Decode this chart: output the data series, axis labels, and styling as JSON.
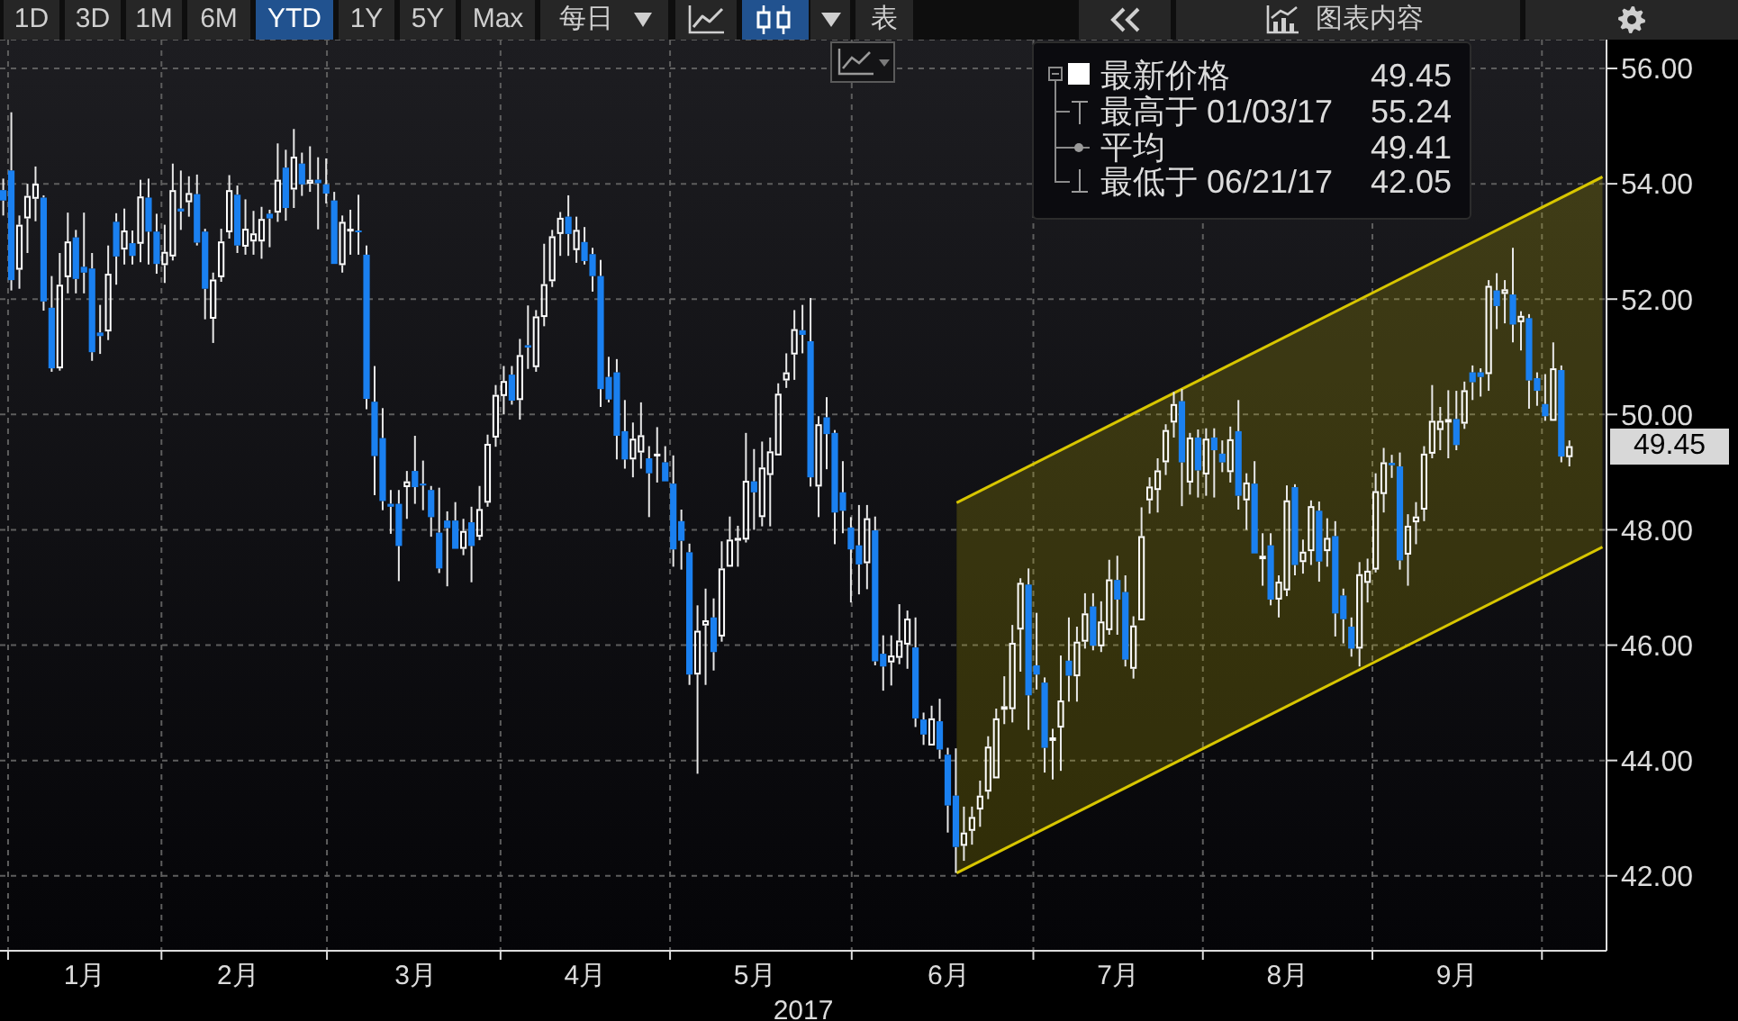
{
  "chart_data": {
    "type": "candlestick",
    "xlabel": "2017",
    "categories": [
      null,
      null,
      null,
      null,
      null,
      null,
      null,
      null,
      null,
      null,
      "1月",
      null,
      null,
      null,
      null,
      null,
      null,
      null,
      null,
      null,
      null,
      null,
      null,
      null,
      null,
      null,
      null,
      null,
      null,
      "2月",
      null,
      null,
      null,
      null,
      null,
      null,
      null,
      null,
      null,
      null,
      null,
      null,
      null,
      null,
      null,
      null,
      null,
      null,
      null,
      null,
      null,
      "3月",
      null,
      null,
      null,
      null,
      null,
      null,
      null,
      null,
      null,
      null,
      null,
      null,
      null,
      null,
      null,
      null,
      null,
      null,
      null,
      null,
      "4月",
      null,
      null,
      null,
      null,
      null,
      null,
      null,
      null,
      null,
      null,
      null,
      null,
      null,
      null,
      null,
      null,
      null,
      null,
      null,
      null,
      "5月",
      null,
      null,
      null,
      null,
      null,
      null,
      null,
      null,
      null,
      null,
      null,
      null,
      null,
      null,
      null,
      null,
      null,
      null,
      null,
      null,
      null,
      null,
      null,
      "6月",
      null,
      null,
      null,
      null,
      null,
      null,
      null,
      null,
      null,
      null,
      null,
      null,
      null,
      null,
      null,
      null,
      null,
      null,
      null,
      null,
      "7月",
      null,
      null,
      null,
      null,
      null,
      null,
      null,
      null,
      null,
      null,
      null,
      null,
      null,
      null,
      null,
      null,
      null,
      null,
      null,
      null,
      "8月",
      null,
      null,
      null,
      null,
      null,
      null,
      null,
      null,
      null,
      null,
      null,
      null,
      null,
      null,
      null,
      null,
      null,
      null,
      null,
      null,
      "9月",
      null,
      null,
      null,
      null,
      null,
      null,
      null,
      null,
      null,
      null,
      null,
      null,
      null,
      null,
      null,
      null,
      null,
      null
    ],
    "ohlc": [
      [
        53.89,
        54.09,
        53.45,
        53.71
      ],
      [
        54.23,
        55.24,
        52.15,
        52.33
      ],
      [
        52.51,
        53.45,
        52.18,
        53.29
      ],
      [
        53.4,
        54.0,
        52.8,
        53.79
      ],
      [
        53.74,
        54.3,
        53.35,
        54.0
      ],
      [
        53.76,
        53.8,
        51.8,
        51.96
      ],
      [
        51.85,
        52.4,
        50.74,
        50.8
      ],
      [
        50.8,
        52.8,
        50.76,
        52.25
      ],
      [
        52.38,
        53.5,
        52.1,
        53.0
      ],
      [
        53.07,
        53.2,
        52.1,
        52.35
      ],
      [
        52.56,
        53.5,
        52.1,
        52.46
      ],
      [
        52.53,
        52.8,
        50.93,
        51.08
      ],
      [
        51.42,
        51.9,
        51.05,
        51.36
      ],
      [
        51.44,
        52.93,
        51.29,
        52.44
      ],
      [
        53.34,
        53.49,
        52.25,
        52.74
      ],
      [
        52.86,
        53.57,
        52.6,
        53.19
      ],
      [
        52.97,
        53.19,
        52.6,
        52.75
      ],
      [
        52.96,
        54.07,
        52.64,
        53.78
      ],
      [
        53.76,
        54.09,
        52.6,
        53.17
      ],
      [
        53.17,
        53.48,
        52.44,
        52.61
      ],
      [
        52.59,
        53.29,
        52.28,
        52.82
      ],
      [
        52.74,
        54.35,
        52.67,
        53.89
      ],
      [
        53.57,
        54.23,
        53.2,
        53.52
      ],
      [
        53.68,
        54.13,
        53.43,
        53.84
      ],
      [
        53.82,
        54.16,
        52.93,
        52.98
      ],
      [
        53.17,
        53.22,
        51.65,
        52.18
      ],
      [
        51.66,
        52.46,
        51.24,
        52.34
      ],
      [
        52.38,
        53.22,
        52.3,
        53.0
      ],
      [
        53.16,
        54.15,
        53.05,
        53.89
      ],
      [
        53.81,
        53.97,
        52.8,
        52.93
      ],
      [
        52.91,
        53.73,
        52.77,
        53.22
      ],
      [
        53.0,
        53.53,
        52.77,
        53.14
      ],
      [
        53.0,
        53.6,
        52.7,
        53.39
      ],
      [
        53.48,
        53.55,
        52.9,
        53.4
      ],
      [
        53.5,
        54.7,
        53.34,
        54.07
      ],
      [
        54.28,
        54.59,
        53.36,
        53.58
      ],
      [
        53.9,
        54.95,
        53.58,
        54.47
      ],
      [
        54.35,
        54.54,
        53.79,
        53.99
      ],
      [
        54.0,
        54.65,
        53.86,
        54.07
      ],
      [
        54.07,
        54.46,
        53.21,
        54.01
      ],
      [
        53.99,
        54.44,
        53.66,
        53.83
      ],
      [
        53.71,
        53.86,
        52.61,
        52.61
      ],
      [
        52.59,
        53.45,
        52.46,
        53.34
      ],
      [
        53.18,
        53.55,
        52.77,
        53.22
      ],
      [
        53.19,
        53.81,
        52.77,
        53.16
      ],
      [
        52.77,
        52.93,
        50.09,
        50.27
      ],
      [
        50.22,
        50.84,
        48.6,
        49.28
      ],
      [
        49.59,
        50.11,
        48.34,
        48.5
      ],
      [
        48.45,
        48.69,
        47.93,
        48.4
      ],
      [
        48.45,
        48.69,
        47.11,
        47.72
      ],
      [
        48.74,
        49.02,
        48.19,
        48.84
      ],
      [
        49.02,
        49.63,
        48.45,
        48.74
      ],
      [
        48.8,
        49.2,
        48.34,
        48.77
      ],
      [
        48.69,
        48.76,
        47.88,
        48.22
      ],
      [
        47.95,
        48.73,
        47.25,
        47.33
      ],
      [
        48.16,
        48.32,
        47.02,
        48.03
      ],
      [
        48.16,
        48.48,
        47.67,
        47.67
      ],
      [
        47.67,
        48.19,
        47.56,
        47.98
      ],
      [
        48.13,
        48.4,
        47.09,
        47.72
      ],
      [
        47.88,
        48.76,
        47.82,
        48.36
      ],
      [
        48.47,
        49.65,
        48.4,
        49.49
      ],
      [
        49.6,
        50.51,
        49.44,
        50.34
      ],
      [
        50.32,
        50.84,
        50.0,
        50.58
      ],
      [
        50.69,
        50.84,
        50.17,
        50.24
      ],
      [
        50.25,
        51.31,
        49.91,
        51.03
      ],
      [
        51.2,
        51.89,
        50.79,
        51.16
      ],
      [
        50.82,
        51.81,
        50.74,
        51.7
      ],
      [
        51.69,
        52.96,
        51.53,
        52.26
      ],
      [
        52.31,
        53.2,
        52.21,
        53.09
      ],
      [
        53.13,
        53.51,
        52.75,
        53.41
      ],
      [
        53.43,
        53.8,
        52.75,
        53.13
      ],
      [
        52.85,
        53.43,
        52.63,
        53.2
      ],
      [
        52.99,
        53.25,
        52.6,
        52.66
      ],
      [
        52.78,
        52.89,
        52.13,
        52.4
      ],
      [
        52.4,
        52.68,
        50.13,
        50.44
      ],
      [
        50.65,
        51.0,
        50.21,
        50.26
      ],
      [
        50.73,
        50.96,
        49.22,
        49.63
      ],
      [
        49.71,
        50.25,
        49.06,
        49.22
      ],
      [
        49.22,
        49.86,
        48.91,
        49.58
      ],
      [
        49.34,
        50.21,
        49.06,
        49.64
      ],
      [
        49.24,
        49.45,
        48.22,
        48.98
      ],
      [
        49.29,
        49.78,
        48.82,
        49.32
      ],
      [
        49.17,
        49.45,
        48.84,
        48.84
      ],
      [
        48.8,
        49.29,
        47.36,
        47.66
      ],
      [
        48.15,
        48.35,
        47.31,
        47.81
      ],
      [
        47.61,
        47.76,
        45.31,
        45.49
      ],
      [
        45.49,
        46.69,
        43.77,
        46.25
      ],
      [
        46.34,
        46.98,
        45.31,
        46.43
      ],
      [
        46.48,
        46.81,
        45.56,
        45.88
      ],
      [
        46.15,
        47.8,
        46.06,
        47.33
      ],
      [
        47.36,
        48.23,
        47.36,
        47.83
      ],
      [
        47.81,
        48.07,
        47.36,
        47.86
      ],
      [
        47.83,
        49.68,
        47.78,
        48.85
      ],
      [
        48.84,
        49.4,
        48.0,
        48.65
      ],
      [
        48.22,
        49.53,
        48.06,
        49.08
      ],
      [
        48.95,
        49.6,
        48.06,
        49.36
      ],
      [
        49.29,
        50.54,
        49.29,
        50.36
      ],
      [
        50.59,
        51.06,
        50.46,
        50.73
      ],
      [
        51.04,
        51.81,
        50.6,
        51.48
      ],
      [
        51.46,
        51.9,
        51.06,
        51.38
      ],
      [
        51.27,
        52.02,
        48.75,
        48.91
      ],
      [
        48.75,
        49.97,
        48.22,
        49.83
      ],
      [
        49.95,
        50.3,
        49.05,
        49.66
      ],
      [
        49.68,
        49.73,
        47.75,
        48.3
      ],
      [
        48.65,
        49.19,
        47.94,
        48.33
      ],
      [
        48.04,
        48.22,
        46.74,
        47.66
      ],
      [
        47.73,
        48.43,
        46.88,
        47.4
      ],
      [
        47.42,
        48.43,
        46.97,
        48.2
      ],
      [
        47.99,
        48.23,
        45.65,
        45.72
      ],
      [
        45.85,
        46.17,
        45.21,
        45.63
      ],
      [
        45.7,
        46.17,
        45.3,
        45.82
      ],
      [
        45.78,
        46.71,
        45.67,
        46.08
      ],
      [
        46.01,
        46.6,
        45.59,
        46.46
      ],
      [
        45.96,
        46.48,
        44.58,
        44.73
      ],
      [
        44.71,
        44.83,
        44.27,
        44.45
      ],
      [
        44.26,
        44.95,
        44.26,
        44.73
      ],
      [
        44.68,
        45.07,
        44.03,
        44.19
      ],
      [
        44.1,
        44.22,
        42.75,
        43.22
      ],
      [
        43.39,
        44.21,
        42.05,
        42.5
      ],
      [
        42.52,
        43.2,
        42.26,
        42.75
      ],
      [
        42.78,
        43.2,
        42.54,
        43.02
      ],
      [
        43.15,
        43.65,
        42.85,
        43.39
      ],
      [
        43.46,
        44.42,
        43.33,
        44.24
      ],
      [
        43.69,
        44.9,
        43.69,
        44.73
      ],
      [
        44.88,
        45.46,
        44.63,
        44.94
      ],
      [
        44.89,
        46.35,
        44.66,
        46.04
      ],
      [
        46.27,
        47.16,
        45.54,
        47.08
      ],
      [
        47.05,
        47.33,
        44.53,
        45.13
      ],
      [
        45.65,
        46.56,
        45.23,
        45.49
      ],
      [
        45.35,
        45.44,
        43.79,
        44.22
      ],
      [
        44.34,
        44.55,
        43.67,
        44.4
      ],
      [
        44.57,
        45.82,
        43.82,
        45.04
      ],
      [
        45.73,
        46.48,
        45.02,
        45.47
      ],
      [
        45.46,
        46.32,
        45.02,
        46.06
      ],
      [
        46.06,
        46.9,
        45.94,
        46.55
      ],
      [
        46.67,
        46.9,
        45.91,
        45.99
      ],
      [
        45.98,
        46.76,
        45.88,
        46.41
      ],
      [
        46.26,
        47.48,
        46.18,
        47.14
      ],
      [
        47.13,
        47.55,
        46.18,
        46.79
      ],
      [
        46.92,
        47.21,
        45.63,
        45.75
      ],
      [
        45.59,
        46.5,
        45.42,
        46.34
      ],
      [
        46.43,
        48.39,
        46.43,
        47.89
      ],
      [
        48.51,
        48.91,
        48.28,
        48.75
      ],
      [
        48.69,
        49.24,
        48.3,
        49.03
      ],
      [
        49.17,
        49.83,
        48.95,
        49.73
      ],
      [
        49.86,
        50.39,
        49.6,
        50.18
      ],
      [
        50.23,
        50.44,
        48.41,
        49.17
      ],
      [
        48.82,
        49.68,
        48.61,
        49.6
      ],
      [
        49.6,
        49.74,
        48.56,
        49.03
      ],
      [
        48.96,
        49.76,
        48.59,
        49.58
      ],
      [
        49.6,
        49.76,
        48.56,
        49.38
      ],
      [
        49.32,
        49.55,
        49.0,
        49.17
      ],
      [
        49.0,
        49.79,
        48.82,
        49.57
      ],
      [
        49.71,
        50.25,
        48.35,
        48.59
      ],
      [
        48.51,
        48.98,
        48.0,
        48.82
      ],
      [
        48.8,
        49.19,
        47.59,
        47.59
      ],
      [
        47.49,
        47.94,
        47.03,
        47.55
      ],
      [
        47.73,
        47.94,
        46.69,
        46.79
      ],
      [
        46.79,
        47.21,
        46.48,
        47.1
      ],
      [
        46.95,
        48.77,
        46.85,
        48.51
      ],
      [
        48.74,
        48.79,
        47.21,
        47.39
      ],
      [
        47.44,
        47.83,
        47.24,
        47.62
      ],
      [
        47.63,
        48.51,
        47.39,
        48.41
      ],
      [
        48.33,
        48.49,
        47.1,
        47.45
      ],
      [
        47.63,
        48.2,
        47.36,
        47.86
      ],
      [
        47.89,
        48.15,
        46.15,
        46.55
      ],
      [
        46.86,
        46.98,
        46.03,
        46.45
      ],
      [
        46.32,
        46.48,
        45.8,
        45.94
      ],
      [
        45.94,
        47.44,
        45.63,
        47.23
      ],
      [
        47.08,
        47.5,
        46.74,
        47.29
      ],
      [
        47.31,
        48.98,
        47.26,
        48.67
      ],
      [
        48.62,
        49.42,
        48.3,
        49.17
      ],
      [
        49.16,
        49.3,
        48.9,
        49.12
      ],
      [
        49.1,
        49.34,
        47.31,
        47.47
      ],
      [
        47.57,
        48.27,
        47.03,
        48.07
      ],
      [
        48.13,
        48.48,
        47.75,
        48.23
      ],
      [
        48.35,
        49.45,
        48.15,
        49.32
      ],
      [
        49.32,
        50.51,
        49.24,
        49.89
      ],
      [
        49.73,
        50.13,
        49.38,
        49.89
      ],
      [
        49.86,
        50.42,
        49.24,
        49.92
      ],
      [
        49.92,
        50.41,
        49.38,
        49.47
      ],
      [
        49.84,
        50.57,
        49.75,
        50.42
      ],
      [
        50.73,
        50.85,
        50.25,
        50.56
      ],
      [
        50.73,
        50.8,
        50.31,
        50.65
      ],
      [
        50.7,
        52.33,
        50.41,
        52.23
      ],
      [
        52.15,
        52.45,
        51.48,
        51.88
      ],
      [
        52.09,
        52.33,
        51.58,
        52.17
      ],
      [
        52.08,
        52.89,
        51.25,
        51.56
      ],
      [
        51.6,
        51.79,
        51.11,
        51.71
      ],
      [
        51.67,
        51.74,
        50.1,
        50.59
      ],
      [
        50.63,
        50.73,
        50.15,
        50.41
      ],
      [
        50.18,
        50.7,
        49.89,
        49.97
      ],
      [
        49.89,
        51.25,
        49.89,
        50.8
      ],
      [
        50.77,
        50.85,
        49.17,
        49.27
      ],
      [
        49.26,
        49.55,
        49.1,
        49.45
      ],
      null,
      null,
      null,
      null
    ],
    "colors": [
      "#1a80f0",
      "#1a80f0",
      "#ffffff",
      "#ffffff",
      "#ffffff",
      "#1a80f0",
      "#1a80f0",
      "#ffffff",
      "#ffffff",
      "#1a80f0",
      "#1a80f0",
      "#1a80f0",
      "#1a80f0",
      "#ffffff",
      "#1a80f0",
      "#ffffff",
      "#1a80f0",
      "#ffffff",
      "#1a80f0",
      "#1a80f0",
      "#ffffff",
      "#ffffff",
      "#1a80f0",
      "#ffffff",
      "#1a80f0",
      "#1a80f0",
      "#ffffff",
      "#ffffff",
      "#ffffff",
      "#1a80f0",
      "#ffffff",
      "#ffffff",
      "#ffffff",
      "#1a80f0",
      "#ffffff",
      "#1a80f0",
      "#ffffff",
      "#1a80f0",
      "#ffffff",
      "#1a80f0",
      "#1a80f0",
      "#1a80f0",
      "#ffffff",
      "#ffffff",
      "#1a80f0",
      "#1a80f0",
      "#1a80f0",
      "#1a80f0",
      "#1a80f0",
      "#1a80f0",
      "#ffffff",
      "#1a80f0",
      "#1a80f0",
      "#1a80f0",
      "#1a80f0",
      "#1a80f0",
      "#1a80f0",
      "#ffffff",
      "#1a80f0",
      "#ffffff",
      "#ffffff",
      "#ffffff",
      "#ffffff",
      "#1a80f0",
      "#ffffff",
      "#1a80f0",
      "#ffffff",
      "#ffffff",
      "#ffffff",
      "#ffffff",
      "#1a80f0",
      "#ffffff",
      "#1a80f0",
      "#1a80f0",
      "#1a80f0",
      "#1a80f0",
      "#1a80f0",
      "#1a80f0",
      "#ffffff",
      "#ffffff",
      "#1a80f0",
      "#ffffff",
      "#1a80f0",
      "#1a80f0",
      "#1a80f0",
      "#1a80f0",
      "#ffffff",
      "#ffffff",
      "#1a80f0",
      "#ffffff",
      "#ffffff",
      "#ffffff",
      "#ffffff",
      "#1a80f0",
      "#ffffff",
      "#ffffff",
      "#ffffff",
      "#ffffff",
      "#ffffff",
      "#1a80f0",
      "#1a80f0",
      "#ffffff",
      "#1a80f0",
      "#1a80f0",
      "#1a80f0",
      "#1a80f0",
      "#1a80f0",
      "#ffffff",
      "#1a80f0",
      "#1a80f0",
      "#ffffff",
      "#ffffff",
      "#ffffff",
      "#1a80f0",
      "#1a80f0",
      "#ffffff",
      "#1a80f0",
      "#1a80f0",
      "#1a80f0",
      "#ffffff",
      "#ffffff",
      "#ffffff",
      "#ffffff",
      "#ffffff",
      "#ffffff",
      "#ffffff",
      "#ffffff",
      "#1a80f0",
      "#1a80f0",
      "#1a80f0",
      "#ffffff",
      "#ffffff",
      "#1a80f0",
      "#ffffff",
      "#ffffff",
      "#1a80f0",
      "#ffffff",
      "#ffffff",
      "#1a80f0",
      "#1a80f0",
      "#ffffff",
      "#ffffff",
      "#ffffff",
      "#ffffff",
      "#ffffff",
      "#ffffff",
      "#1a80f0",
      "#ffffff",
      "#1a80f0",
      "#ffffff",
      "#1a80f0",
      "#1a80f0",
      "#ffffff",
      "#1a80f0",
      "#ffffff",
      "#1a80f0",
      "#ffffff",
      "#1a80f0",
      "#ffffff",
      "#ffffff",
      "#1a80f0",
      "#ffffff",
      "#ffffff",
      "#1a80f0",
      "#ffffff",
      "#1a80f0",
      "#1a80f0",
      "#1a80f0",
      "#ffffff",
      "#ffffff",
      "#ffffff",
      "#ffffff",
      "#1a80f0",
      "#1a80f0",
      "#ffffff",
      "#ffffff",
      "#ffffff",
      "#ffffff",
      "#ffffff",
      "#ffffff",
      "#1a80f0",
      "#ffffff",
      "#1a80f0",
      "#1a80f0",
      "#ffffff",
      "#1a80f0",
      "#ffffff",
      "#1a80f0",
      "#ffffff",
      "#1a80f0",
      "#1a80f0",
      "#1a80f0",
      "#ffffff",
      "#1a80f0",
      "#ffffff",
      null,
      null,
      null,
      null
    ],
    "series": [
      {
        "type": "line",
        "color": "#d8c600",
        "values": [
          null,
          null,
          null,
          null,
          null,
          null,
          null,
          null,
          null,
          null,
          null,
          null,
          null,
          null,
          null,
          null,
          null,
          null,
          null,
          null,
          null,
          null,
          null,
          null,
          null,
          null,
          null,
          null,
          null,
          null,
          null,
          null,
          null,
          null,
          null,
          null,
          null,
          null,
          null,
          null,
          null,
          null,
          null,
          null,
          null,
          null,
          null,
          null,
          null,
          null,
          null,
          null,
          null,
          null,
          null,
          null,
          null,
          null,
          null,
          null,
          null,
          null,
          null,
          null,
          null,
          null,
          null,
          null,
          null,
          null,
          null,
          null,
          null,
          null,
          null,
          null,
          null,
          null,
          null,
          null,
          null,
          null,
          null,
          null,
          null,
          null,
          null,
          null,
          null,
          null,
          null,
          null,
          null,
          null,
          null,
          null,
          null,
          null,
          null,
          null,
          null,
          null,
          null,
          null,
          null,
          null,
          null,
          null,
          null,
          null,
          null,
          null,
          null,
          null,
          null,
          null,
          null,
          null,
          48.47,
          null,
          null,
          null,
          null,
          null,
          null,
          null,
          null,
          null,
          null,
          null,
          null,
          null,
          null,
          null,
          null,
          null,
          null,
          null,
          null,
          null,
          null,
          null,
          null,
          null,
          null,
          null,
          null,
          null,
          null,
          null,
          null,
          null,
          null,
          null,
          null,
          null,
          null,
          null,
          null,
          null,
          null,
          null,
          null,
          null,
          null,
          null,
          null,
          null,
          null,
          null,
          null,
          null,
          null,
          null,
          null,
          null,
          null,
          null,
          null,
          null,
          null,
          null,
          null,
          null,
          null,
          null,
          null,
          null,
          null,
          null,
          null,
          null,
          null,
          null,
          null,
          null,
          null,
          null,
          54.12
        ],
        "lower": [
          null,
          null,
          null,
          null,
          null,
          null,
          null,
          null,
          null,
          null,
          null,
          null,
          null,
          null,
          null,
          null,
          null,
          null,
          null,
          null,
          null,
          null,
          null,
          null,
          null,
          null,
          null,
          null,
          null,
          null,
          null,
          null,
          null,
          null,
          null,
          null,
          null,
          null,
          null,
          null,
          null,
          null,
          null,
          null,
          null,
          null,
          null,
          null,
          null,
          null,
          null,
          null,
          null,
          null,
          null,
          null,
          null,
          null,
          null,
          null,
          null,
          null,
          null,
          null,
          null,
          null,
          null,
          null,
          null,
          null,
          null,
          null,
          null,
          null,
          null,
          null,
          null,
          null,
          null,
          null,
          null,
          null,
          null,
          null,
          null,
          null,
          null,
          null,
          null,
          null,
          null,
          null,
          null,
          null,
          null,
          null,
          null,
          null,
          null,
          null,
          null,
          null,
          null,
          null,
          null,
          null,
          null,
          null,
          null,
          null,
          null,
          null,
          null,
          null,
          null,
          null,
          null,
          null,
          42.05,
          null,
          null,
          null,
          null,
          null,
          null,
          null,
          null,
          null,
          null,
          null,
          null,
          null,
          null,
          null,
          null,
          null,
          null,
          null,
          null,
          null,
          null,
          null,
          null,
          null,
          null,
          null,
          null,
          null,
          null,
          null,
          null,
          null,
          null,
          null,
          null,
          null,
          null,
          null,
          null,
          null,
          null,
          null,
          null,
          null,
          null,
          null,
          null,
          null,
          null,
          null,
          null,
          null,
          null,
          null,
          null,
          null,
          null,
          null,
          null,
          null,
          null,
          null,
          null,
          null,
          null,
          null,
          null,
          null,
          null,
          null,
          null,
          null,
          null,
          null,
          null,
          null,
          null,
          null,
          47.7
        ],
        "upper": [
          null,
          null,
          null,
          null,
          null,
          null,
          null,
          null,
          null,
          null,
          null,
          null,
          null,
          null,
          null,
          null,
          null,
          null,
          null,
          null,
          null,
          null,
          null,
          null,
          null,
          null,
          null,
          null,
          null,
          null,
          null,
          null,
          null,
          null,
          null,
          null,
          null,
          null,
          null,
          null,
          null,
          null,
          null,
          null,
          null,
          null,
          null,
          null,
          null,
          null,
          null,
          null,
          null,
          null,
          null,
          null,
          null,
          null,
          null,
          null,
          null,
          null,
          null,
          null,
          null,
          null,
          null,
          null,
          null,
          null,
          null,
          null,
          null,
          null,
          null,
          null,
          null,
          null,
          null,
          null,
          null,
          null,
          null,
          null,
          null,
          null,
          null,
          null,
          null,
          null,
          null,
          null,
          null,
          null,
          null,
          null,
          null,
          null,
          null,
          null,
          null,
          null,
          null,
          null,
          null,
          null,
          null,
          null,
          null,
          null,
          null,
          null,
          null,
          null,
          null,
          null,
          null,
          null,
          48.47,
          null,
          null,
          null,
          null,
          null,
          null,
          null,
          null,
          null,
          null,
          null,
          null,
          null,
          null,
          null,
          null,
          null,
          null,
          null,
          null,
          null,
          null,
          null,
          null,
          null,
          null,
          null,
          null,
          null,
          null,
          null,
          null,
          null,
          null,
          null,
          null,
          null,
          null,
          null,
          null,
          null,
          null,
          null,
          null,
          null,
          null,
          null,
          null,
          null,
          null,
          null,
          null,
          null,
          null,
          null,
          null,
          null,
          null,
          null,
          null,
          null,
          null,
          null,
          null,
          null,
          null,
          null,
          null,
          null,
          null,
          null,
          null,
          null,
          null,
          null,
          null,
          null,
          null,
          null,
          54.12
        ]
      },
      {
        "type": "line",
        "color": "#d8c600",
        "values": [
          null,
          null,
          null,
          null,
          null,
          null,
          null,
          null,
          null,
          null,
          null,
          null,
          null,
          null,
          null,
          null,
          null,
          null,
          null,
          null,
          null,
          null,
          null,
          null,
          null,
          null,
          null,
          null,
          null,
          null,
          null,
          null,
          null,
          null,
          null,
          null,
          null,
          null,
          null,
          null,
          null,
          null,
          null,
          null,
          null,
          null,
          null,
          null,
          null,
          null,
          null,
          null,
          null,
          null,
          null,
          null,
          null,
          null,
          null,
          null,
          null,
          null,
          null,
          null,
          null,
          null,
          null,
          null,
          null,
          null,
          null,
          null,
          null,
          null,
          null,
          null,
          null,
          null,
          null,
          null,
          null,
          null,
          null,
          null,
          null,
          null,
          null,
          null,
          null,
          null,
          null,
          null,
          null,
          null,
          null,
          null,
          null,
          null,
          null,
          null,
          null,
          null,
          null,
          null,
          null,
          null,
          null,
          null,
          null,
          null,
          null,
          null,
          null,
          null,
          null,
          null,
          null,
          null,
          42.05,
          null,
          null,
          null,
          null,
          null,
          null,
          null,
          null,
          null,
          null,
          null,
          null,
          null,
          null,
          null,
          null,
          null,
          null,
          null,
          null,
          null,
          null,
          null,
          null,
          null,
          null,
          null,
          null,
          null,
          null,
          null,
          null,
          null,
          null,
          null,
          null,
          null,
          null,
          null,
          null,
          null,
          null,
          null,
          null,
          null,
          null,
          null,
          null,
          null,
          null,
          null,
          null,
          null,
          null,
          null,
          null,
          null,
          null,
          null,
          null,
          null,
          null,
          null,
          null,
          null,
          null,
          null,
          null,
          null,
          null,
          null,
          null,
          null,
          null,
          null,
          null,
          null,
          null,
          null,
          47.7
        ]
      }
    ],
    "ylim": [
      40.7,
      56.5
    ],
    "yticks": [
      {
        "value": 42,
        "label": "42.00"
      },
      {
        "value": 44,
        "label": "44.00"
      },
      {
        "value": 46,
        "label": "46.00"
      },
      {
        "value": 48,
        "label": "48.00"
      },
      {
        "value": 50,
        "label": "50.00"
      },
      {
        "value": 52,
        "label": "52.00"
      },
      {
        "value": 54,
        "label": "54.00"
      },
      {
        "value": 56,
        "label": "56.00"
      }
    ],
    "grid": true,
    "annotations": [
      "1D",
      "3D",
      "1M",
      "6M",
      "YTD",
      "1Y",
      "5Y",
      "Max",
      "每日",
      "表",
      "图表内容",
      "最新价格",
      "49.45",
      "最高于 01/03/17",
      "55.24",
      "平均",
      "49.41",
      "最低于 06/21/17",
      "42.05",
      "49.45"
    ]
  }
}
